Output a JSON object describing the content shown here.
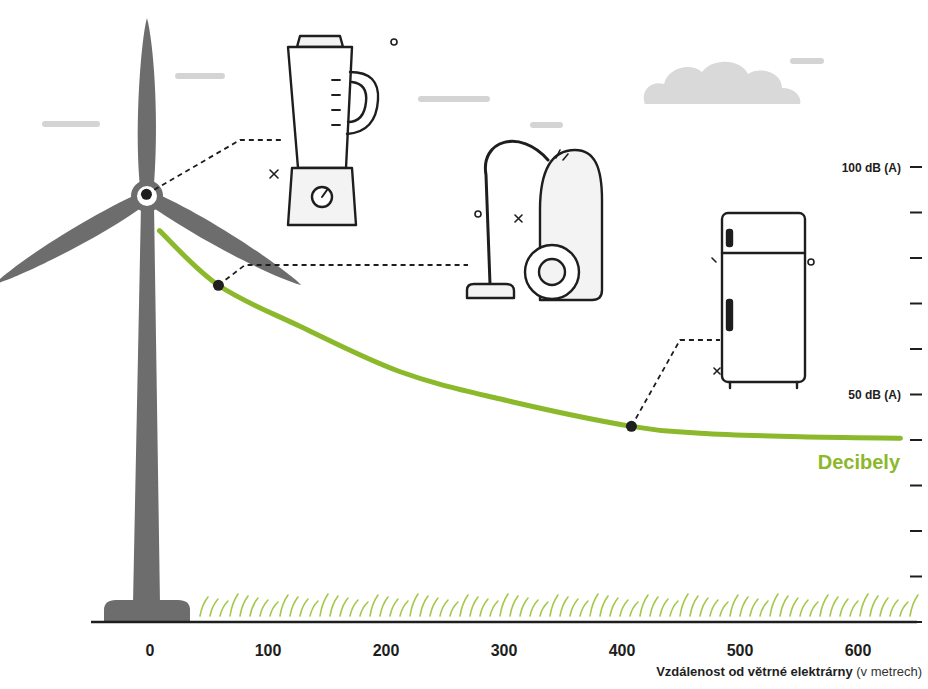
{
  "chart_data": {
    "type": "line",
    "xlabel": "Vzdálenost od větrné elektrárny (v metrech)",
    "x": [
      8,
      58,
      127,
      212,
      297,
      408,
      466,
      551,
      636
    ],
    "series": [
      {
        "name": "Decibely",
        "color": "#8cb82b",
        "values": [
          86,
          74,
          65,
          55,
          49,
          43,
          41.5,
          40.7,
          40.4
        ]
      }
    ],
    "xlim": [
      -50,
      650
    ],
    "ylim": [
      0,
      100
    ],
    "xticks": [
      0,
      100,
      200,
      300,
      400,
      500,
      600
    ],
    "yticks": [
      {
        "value": 0,
        "label": null
      },
      {
        "value": 10,
        "label": null
      },
      {
        "value": 20,
        "label": null
      },
      {
        "value": 30,
        "label": null
      },
      {
        "value": 40,
        "label": null
      },
      {
        "value": 50,
        "label": "50 dB (A)"
      },
      {
        "value": 60,
        "label": null
      },
      {
        "value": 70,
        "label": null
      },
      {
        "value": 80,
        "label": null
      },
      {
        "value": 90,
        "label": null
      },
      {
        "value": 100,
        "label": "100 dB (A)"
      }
    ],
    "annotations": [
      {
        "x": -3,
        "y": 94
      },
      {
        "x": 58,
        "y": 74
      },
      {
        "x": 408,
        "y": 43
      }
    ],
    "grid": false
  }
}
